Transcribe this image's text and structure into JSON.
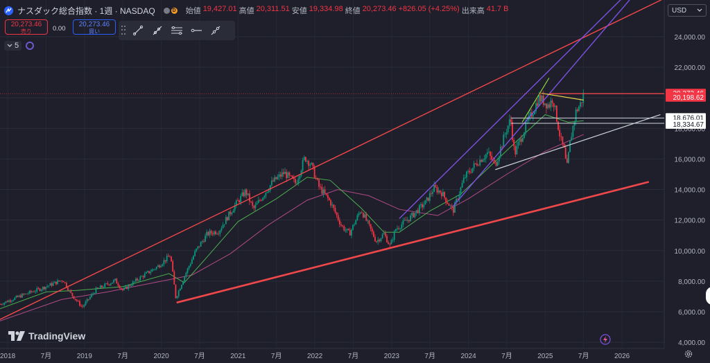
{
  "symbol": {
    "title": "ナスダック総合指数 · 1週 · NASDAQ",
    "status_badge": "D"
  },
  "ohlc": {
    "open_label": "始値",
    "open": "19,427.01",
    "high_label": "高値",
    "high": "20,311.51",
    "low_label": "安値",
    "low": "19,334.98",
    "close_label": "終値",
    "close": "20,273.46",
    "change": "+826.05 (+4.25%)",
    "volume_label": "出来高",
    "volume": "41.7 B"
  },
  "trade": {
    "sell_price": "20,273.46",
    "sell_label": "売り",
    "spread": "0.00",
    "buy_price": "20,273.46",
    "buy_label": "買い"
  },
  "interval_count": "5",
  "currency": "USD",
  "brand": "TradingView",
  "colors": {
    "background": "#1e1f2b",
    "up": "#089981",
    "down": "#f23645",
    "channel_red": "#f0474a",
    "channel_purple": "#7b52e0",
    "ma_green": "#4caf50",
    "ma_pink": "#b24a86",
    "white_line": "#d1d4dc",
    "yellow_line": "#e8d34a",
    "lime_line": "#8bd13f"
  },
  "icons": [
    "nasdaq-logo-icon",
    "trend-line-icon",
    "ray-icon",
    "horizontal-lines-icon",
    "horizontal-ray-icon",
    "extended-line-icon",
    "chevron-down-icon",
    "indicator-icon",
    "flash-icon",
    "gear-icon"
  ],
  "chart_data": {
    "type": "candlestick",
    "interval": "1週",
    "y_axis": {
      "ticks": [
        4000,
        6000,
        8000,
        10000,
        12000,
        14000,
        16000,
        18000,
        20000,
        22000,
        24000
      ],
      "tick_labels": [
        "4,000.00",
        "6,000.00",
        "8,000.00",
        "10,000.00",
        "12,000.00",
        "14,000.00",
        "16,000.00",
        "18,000.00",
        "20,000.00",
        "22,000.00",
        "24,000.00"
      ],
      "ylim": [
        3600,
        26400
      ]
    },
    "x_axis": {
      "tick_labels": [
        "2018",
        "7月",
        "2019",
        "7月",
        "2020",
        "7月",
        "2021",
        "7月",
        "2022",
        "7月",
        "2023",
        "7月",
        "2024",
        "7月",
        "2025",
        "7月",
        "2026"
      ],
      "xlim": [
        2017.9,
        2026.55
      ]
    },
    "price_labels": [
      {
        "value": 20273.46,
        "text": "20,273.46",
        "style": "red"
      },
      {
        "value": 20198.62,
        "text": "20,198.62",
        "style": "red"
      },
      {
        "value": 18676.01,
        "text": "18,676.01",
        "style": "white"
      },
      {
        "value": 18334.67,
        "text": "18,334.67",
        "style": "white"
      }
    ],
    "price_path": [
      [
        2017.9,
        6500
      ],
      [
        2018.2,
        7100
      ],
      [
        2018.45,
        7550
      ],
      [
        2018.72,
        8100
      ],
      [
        2018.82,
        7200
      ],
      [
        2018.97,
        6300
      ],
      [
        2019.15,
        7450
      ],
      [
        2019.4,
        8050
      ],
      [
        2019.5,
        7400
      ],
      [
        2019.7,
        8150
      ],
      [
        2019.95,
        8950
      ],
      [
        2020.12,
        9700
      ],
      [
        2020.19,
        6900
      ],
      [
        2020.3,
        8300
      ],
      [
        2020.45,
        10000
      ],
      [
        2020.6,
        11100
      ],
      [
        2020.75,
        11300
      ],
      [
        2020.95,
        12900
      ],
      [
        2021.1,
        13900
      ],
      [
        2021.2,
        12700
      ],
      [
        2021.45,
        14500
      ],
      [
        2021.6,
        15100
      ],
      [
        2021.75,
        14400
      ],
      [
        2021.87,
        16100
      ],
      [
        2021.95,
        15650
      ],
      [
        2022.05,
        14200
      ],
      [
        2022.2,
        13200
      ],
      [
        2022.35,
        11600
      ],
      [
        2022.45,
        11100
      ],
      [
        2022.6,
        12700
      ],
      [
        2022.8,
        10600
      ],
      [
        2022.9,
        11100
      ],
      [
        2022.98,
        10300
      ],
      [
        2023.05,
        11400
      ],
      [
        2023.25,
        12200
      ],
      [
        2023.45,
        13200
      ],
      [
        2023.55,
        14100
      ],
      [
        2023.65,
        13800
      ],
      [
        2023.8,
        12600
      ],
      [
        2023.95,
        14800
      ],
      [
        2024.1,
        15700
      ],
      [
        2024.25,
        16400
      ],
      [
        2024.35,
        15600
      ],
      [
        2024.5,
        18000
      ],
      [
        2024.55,
        18600
      ],
      [
        2024.6,
        16300
      ],
      [
        2024.75,
        18200
      ],
      [
        2024.92,
        20000
      ],
      [
        2025.05,
        19500
      ],
      [
        2025.1,
        20000
      ],
      [
        2025.2,
        17300
      ],
      [
        2025.25,
        16500
      ],
      [
        2025.28,
        15300
      ],
      [
        2025.33,
        17300
      ],
      [
        2025.4,
        19100
      ],
      [
        2025.47,
        19700
      ],
      [
        2025.5,
        20273
      ]
    ],
    "ma_green": [
      [
        2017.9,
        6200
      ],
      [
        2018.5,
        7300
      ],
      [
        2018.9,
        7400
      ],
      [
        2019.5,
        7650
      ],
      [
        2020.1,
        8500
      ],
      [
        2020.3,
        7900
      ],
      [
        2020.6,
        9600
      ],
      [
        2021.0,
        11900
      ],
      [
        2021.5,
        13400
      ],
      [
        2021.9,
        14800
      ],
      [
        2022.2,
        14600
      ],
      [
        2022.6,
        12800
      ],
      [
        2022.9,
        11200
      ],
      [
        2023.1,
        11200
      ],
      [
        2023.5,
        12600
      ],
      [
        2023.9,
        13700
      ],
      [
        2024.3,
        15600
      ],
      [
        2024.7,
        17500
      ],
      [
        2025.0,
        18900
      ],
      [
        2025.3,
        18400
      ],
      [
        2025.5,
        18500
      ]
    ],
    "ma_pink": [
      [
        2017.9,
        5400
      ],
      [
        2018.7,
        6800
      ],
      [
        2019.3,
        7300
      ],
      [
        2019.9,
        7900
      ],
      [
        2020.4,
        8400
      ],
      [
        2020.9,
        9800
      ],
      [
        2021.4,
        11700
      ],
      [
        2021.9,
        13300
      ],
      [
        2022.3,
        14000
      ],
      [
        2022.7,
        13600
      ],
      [
        2023.1,
        12700
      ],
      [
        2023.6,
        12300
      ],
      [
        2024.0,
        13400
      ],
      [
        2024.5,
        15000
      ],
      [
        2025.0,
        16500
      ],
      [
        2025.5,
        17600
      ]
    ],
    "drawings": [
      {
        "name": "upper-red-channel-line",
        "color": "red",
        "points": [
          [
            2017.9,
            5500
          ],
          [
            2026.55,
            26500
          ]
        ],
        "width": 1.4
      },
      {
        "name": "lower-red-support-line",
        "color": "red",
        "points": [
          [
            2020.2,
            6600
          ],
          [
            2026.35,
            14500
          ]
        ],
        "width": 2.6
      },
      {
        "name": "purple-channel-upper",
        "color": "purple",
        "points": [
          [
            2023.1,
            12100
          ],
          [
            2026.1,
            27000
          ]
        ],
        "width": 1.4
      },
      {
        "name": "purple-channel-lower",
        "color": "purple",
        "points": [
          [
            2023.8,
            12900
          ],
          [
            2026.2,
            27000
          ]
        ],
        "width": 1.4
      },
      {
        "name": "white-rising-line",
        "color": "white",
        "points": [
          [
            2024.35,
            15300
          ],
          [
            2026.5,
            18900
          ]
        ],
        "width": 1.2
      },
      {
        "name": "white-level-18676",
        "color": "white",
        "points": [
          [
            2024.55,
            18676
          ],
          [
            2026.55,
            18676
          ]
        ],
        "width": 1
      },
      {
        "name": "white-level-18334",
        "color": "white",
        "points": [
          [
            2024.55,
            18334
          ],
          [
            2026.55,
            18334
          ]
        ],
        "width": 1
      },
      {
        "name": "red-level-20273",
        "color": "red",
        "points": [
          [
            2025.05,
            20273
          ],
          [
            2026.55,
            20273
          ]
        ],
        "width": 1.4
      },
      {
        "name": "yellow-flag-line",
        "color": "yellow",
        "points": [
          [
            2024.95,
            20300
          ],
          [
            2025.5,
            19850
          ]
        ],
        "width": 1.2
      },
      {
        "name": "green-flag-pole",
        "color": "lime",
        "points": [
          [
            2024.7,
            18400
          ],
          [
            2025.05,
            21300
          ]
        ],
        "width": 1.2
      }
    ]
  }
}
